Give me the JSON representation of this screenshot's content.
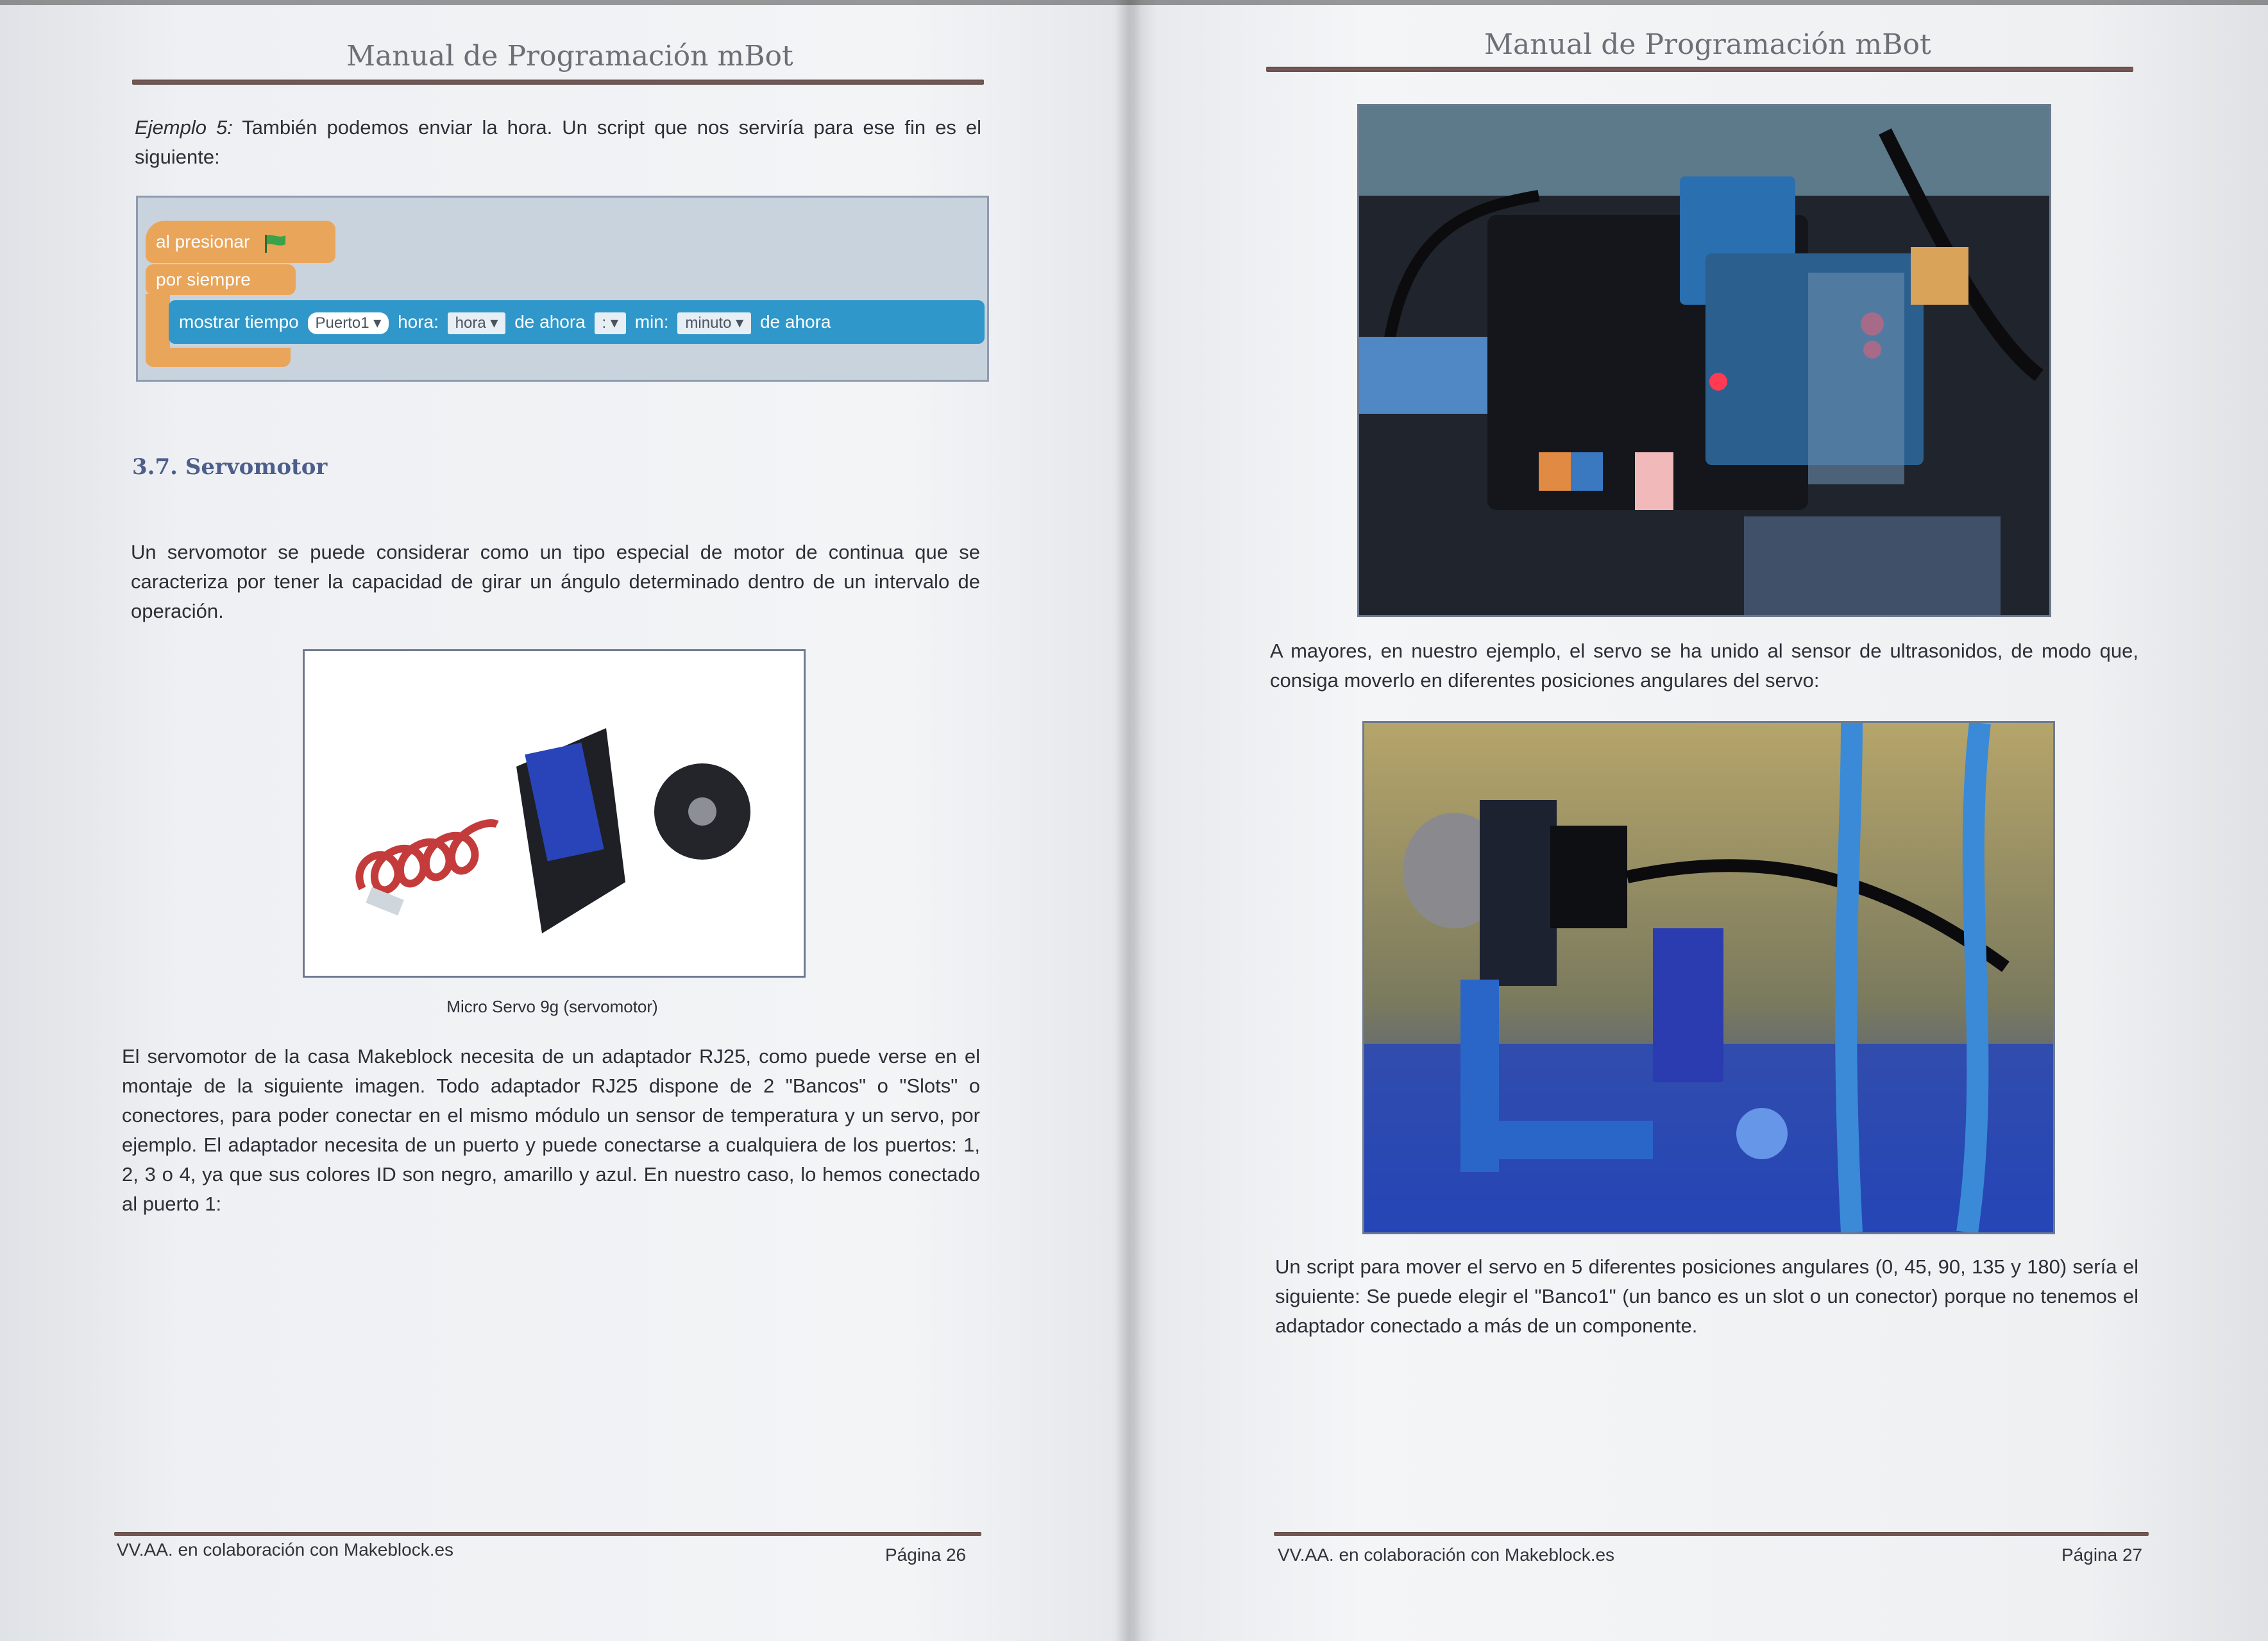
{
  "left_page": {
    "header_title": "Manual de Programación mBot",
    "example": {
      "label": "Ejemplo 5:",
      "text": " También podemos enviar la hora. Un script que nos serviría para ese fin es el siguiente:"
    },
    "script": {
      "hat_block": "al presionar",
      "forever_block": "por siempre",
      "command": {
        "label": "mostrar tiempo",
        "port": "Puerto1",
        "hour_label": "hora:",
        "hour_value": "hora",
        "from_now_1": "de ahora",
        "separator": ":",
        "min_label": "min:",
        "minute_value": "minuto",
        "from_now_2": "de ahora"
      }
    },
    "section_title": "3.7. Servomotor",
    "paragraph_1": "Un servomotor se puede considerar como un tipo especial de motor de continua que se caracteriza por tener la capacidad de girar un ángulo determinado dentro de un intervalo de operación.",
    "figure_caption": "Micro Servo 9g (servomotor)",
    "paragraph_2": "El servomotor de la casa Makeblock necesita de un adaptador RJ25, como puede verse en el montaje de la siguiente imagen. Todo adaptador RJ25 dispone de 2 \"Bancos\" o \"Slots\" o conectores, para poder conectar en el mismo módulo un sensor de temperatura y un servo, por ejemplo. El adaptador necesita de un puerto y puede conectarse a cualquiera de los puertos: 1, 2, 3 o 4, ya que sus colores ID son negro, amarillo y azul. En nuestro caso, lo hemos conectado al puerto 1:",
    "footer_left": "VV.AA. en colaboración con Makeblock.es",
    "footer_right": "Página 26"
  },
  "right_page": {
    "header_title": "Manual de Programación mBot",
    "paragraph_1": "A mayores, en nuestro ejemplo, el servo se ha unido al sensor de ultrasonidos, de modo que, consiga moverlo en diferentes posiciones angulares del servo:",
    "paragraph_2": "Un script para mover el servo en 5 diferentes posiciones angulares (0, 45, 90, 135 y 180) sería el siguiente: Se puede elegir el \"Banco1\" (un banco es un slot o un conector) porque no tenemos el adaptador conectado a más de un componente.",
    "footer_left": "VV.AA. en colaboración con Makeblock.es",
    "footer_right": "Página 27"
  },
  "colors": {
    "header_rule": "#6b504c",
    "section_title": "#4d5e8a",
    "scratch_orange": "#e9a55a",
    "scratch_blue": "#2f97c9",
    "flag_green": "#3aa34a"
  }
}
